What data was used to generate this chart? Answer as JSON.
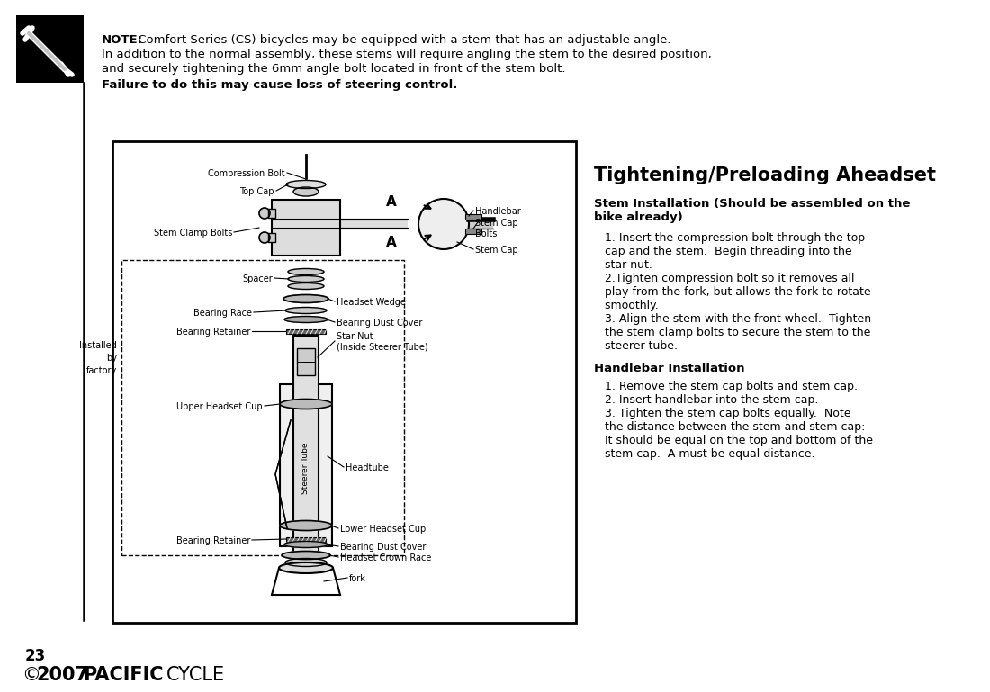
{
  "bg_color": "#ffffff",
  "page_number": "23",
  "note_bold": "NOTE:",
  "note_rest": " Comfort Series (CS) bicycles may be equipped with a stem that has an adjustable angle.",
  "note_line2": "In addition to the normal assembly, these stems will require angling the stem to the desired position,",
  "note_line3": "and securely tightening the 6mm angle bolt located in front of the stem bolt.",
  "failure_text": "Failure to do this may cause loss of steering control.",
  "title": "Tightening/Preloading Aheadset",
  "stem_install_bold": "Stem Installation (Should be assembled on the\nbike already)",
  "stem_install_lines": [
    "   1. Insert the compression bolt through the top",
    "   cap and the stem.  Begin threading into the",
    "   star nut.",
    "   2.Tighten compression bolt so it removes all",
    "   play from the fork, but allows the fork to rotate",
    "   smoothly.",
    "   3. Align the stem with the front wheel.  Tighten",
    "   the stem clamp bolts to secure the stem to the",
    "   steerer tube."
  ],
  "handlebar_bold": "Handlebar Installation",
  "handlebar_lines": [
    "   1. Remove the stem cap bolts and stem cap.",
    "   2. Insert handlebar into the stem cap.",
    "   3. Tighten the stem cap bolts equally.  Note",
    "   the distance between the stem and stem cap:",
    "   It should be equal on the top and bottom of the",
    "   stem cap.  A must be equal distance."
  ],
  "copyright_sym": "©",
  "copyright_year": "2007",
  "pacific_text": "PACIFIC",
  "cycle_text": "CYCLE"
}
